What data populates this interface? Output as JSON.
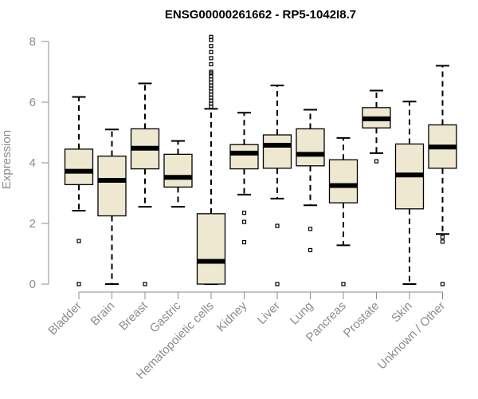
{
  "chart_data": {
    "type": "boxplot",
    "title": "ENSG00000261662 - RP5-1042I8.7",
    "xlabel": "",
    "ylabel": "Expression",
    "ylim": [
      0,
      8.2
    ],
    "yticks": [
      0,
      2,
      4,
      6,
      8
    ],
    "ytick_labels": [
      "0",
      "2",
      "4",
      "6",
      "8"
    ],
    "grid": false,
    "legend": "none",
    "box_fill": "#efe8d1",
    "categories": [
      "Bladder",
      "Brain",
      "Breast",
      "Gastric",
      "Hematopoietic cells",
      "Kidney",
      "Liver",
      "Lung",
      "Pancreas",
      "Prostate",
      "Skin",
      "Unknown / Other"
    ],
    "boxes": [
      {
        "category": "Bladder",
        "whisker_low": 2.42,
        "q1": 3.28,
        "median": 3.72,
        "q3": 4.45,
        "whisker_high": 6.17,
        "outliers": [
          1.42,
          0.0
        ]
      },
      {
        "category": "Brain",
        "whisker_low": 0.0,
        "q1": 2.25,
        "median": 3.42,
        "q3": 4.22,
        "whisker_high": 5.1,
        "outliers": []
      },
      {
        "category": "Breast",
        "whisker_low": 2.55,
        "q1": 3.8,
        "median": 4.48,
        "q3": 5.12,
        "whisker_high": 6.62,
        "outliers": [
          0.0
        ]
      },
      {
        "category": "Gastric",
        "whisker_low": 2.55,
        "q1": 3.2,
        "median": 3.52,
        "q3": 4.28,
        "whisker_high": 4.72,
        "outliers": []
      },
      {
        "category": "Hematopoietic cells",
        "whisker_low": 0.0,
        "q1": 0.0,
        "median": 0.75,
        "q3": 2.32,
        "whisker_high": 5.78,
        "outliers": [
          5.85,
          5.95,
          6.05,
          6.15,
          6.25,
          6.35,
          6.45,
          6.55,
          6.65,
          6.75,
          6.85,
          6.95,
          7.0,
          7.25,
          7.45,
          7.65,
          7.85,
          8.05,
          8.15
        ]
      },
      {
        "category": "Kidney",
        "whisker_low": 2.95,
        "q1": 3.8,
        "median": 4.32,
        "q3": 4.6,
        "whisker_high": 5.65,
        "outliers": [
          2.35,
          2.05,
          1.38
        ]
      },
      {
        "category": "Liver",
        "whisker_low": 2.82,
        "q1": 3.82,
        "median": 4.58,
        "q3": 4.92,
        "whisker_high": 6.55,
        "outliers": [
          1.92,
          0.0
        ]
      },
      {
        "category": "Lung",
        "whisker_low": 2.6,
        "q1": 3.9,
        "median": 4.28,
        "q3": 5.12,
        "whisker_high": 5.75,
        "outliers": [
          1.82,
          1.12
        ]
      },
      {
        "category": "Pancreas",
        "whisker_low": 1.28,
        "q1": 2.68,
        "median": 3.25,
        "q3": 4.1,
        "whisker_high": 4.82,
        "outliers": [
          0.0
        ]
      },
      {
        "category": "Prostate",
        "whisker_low": 4.32,
        "q1": 5.15,
        "median": 5.45,
        "q3": 5.82,
        "whisker_high": 6.38,
        "outliers": [
          4.05
        ]
      },
      {
        "category": "Skin",
        "whisker_low": 0.0,
        "q1": 2.48,
        "median": 3.6,
        "q3": 4.62,
        "whisker_high": 6.02,
        "outliers": []
      },
      {
        "category": "Unknown / Other",
        "whisker_low": 1.65,
        "q1": 3.82,
        "median": 4.52,
        "q3": 5.25,
        "whisker_high": 7.2,
        "outliers": [
          1.55,
          1.4,
          0.0
        ]
      }
    ]
  }
}
